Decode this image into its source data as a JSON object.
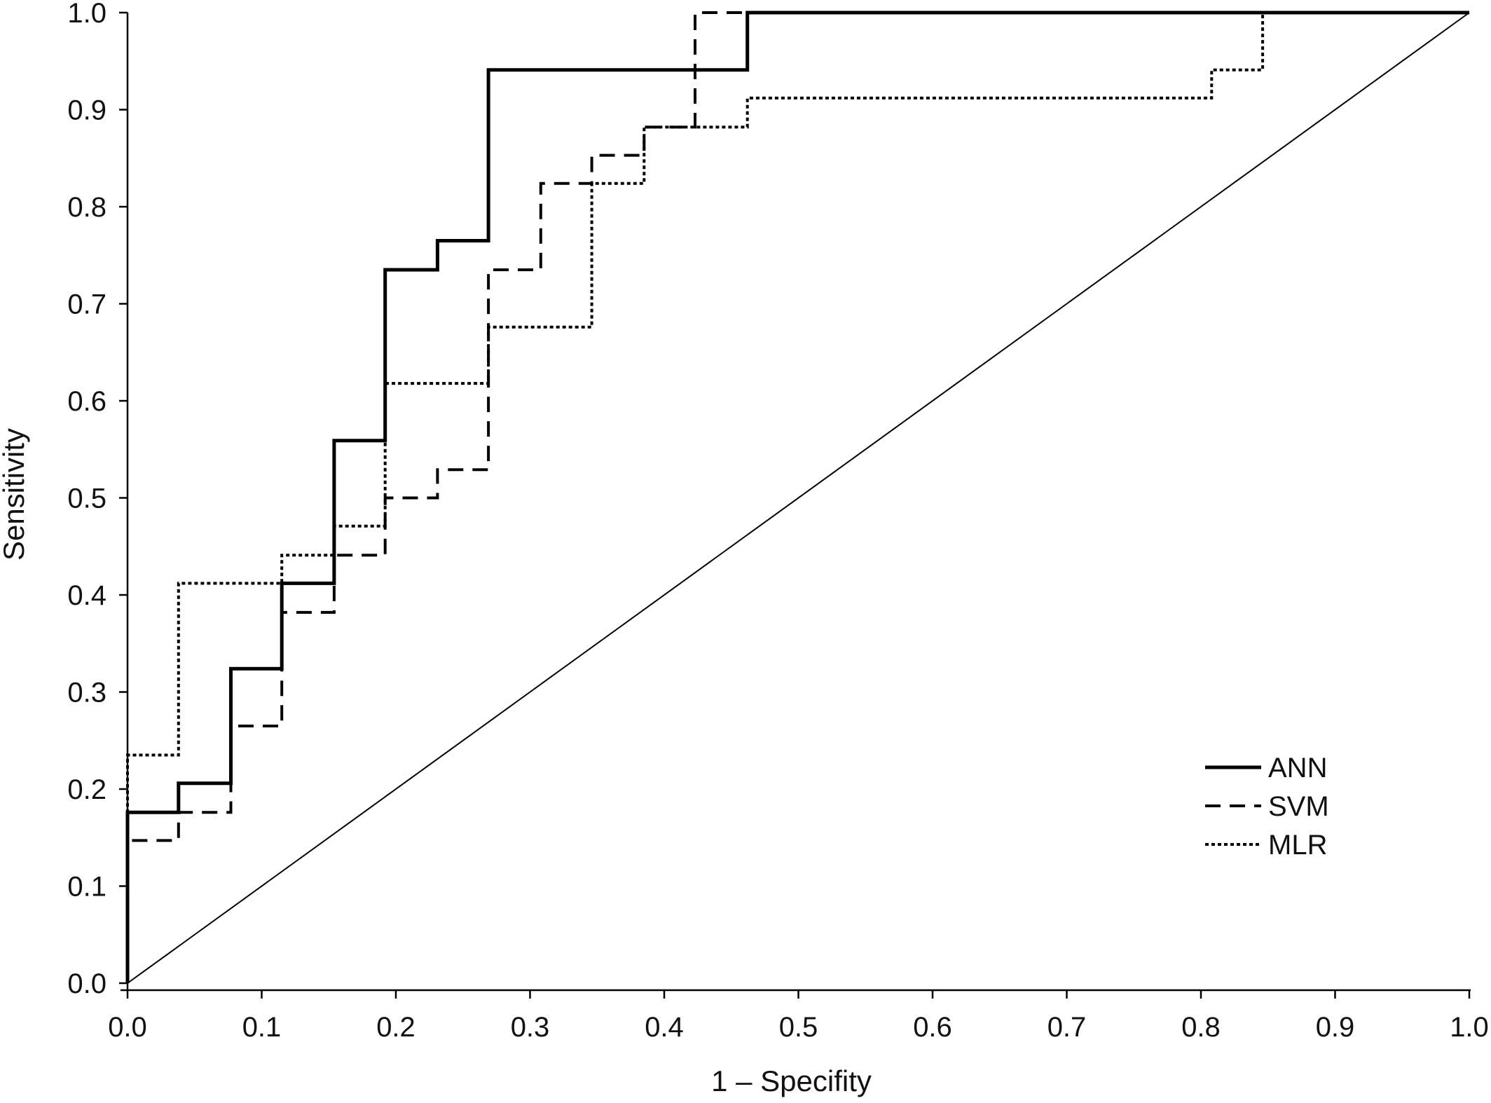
{
  "chart_data": {
    "type": "line",
    "title": "",
    "xlabel": "1 – Specifity",
    "ylabel": "Sensitivity",
    "xlim": [
      0.0,
      1.0
    ],
    "ylim": [
      0.0,
      1.0
    ],
    "grid": false,
    "legend_position": "bottom-right",
    "x_ticks": [
      "0.0",
      "0.1",
      "0.2",
      "0.3",
      "0.4",
      "0.5",
      "0.6",
      "0.7",
      "0.8",
      "0.9",
      "1.0"
    ],
    "y_ticks": [
      "0.0",
      "0.1",
      "0.2",
      "0.3",
      "0.4",
      "0.5",
      "0.6",
      "0.7",
      "0.8",
      "0.9",
      "1.0"
    ],
    "reference_line": {
      "x": [
        0.0,
        1.0
      ],
      "y": [
        0.0,
        1.0
      ]
    },
    "series": [
      {
        "name": "ANN",
        "style": "solid",
        "color": "#000000",
        "points": [
          [
            0.0,
            0.0
          ],
          [
            0.0,
            0.176
          ],
          [
            0.038,
            0.176
          ],
          [
            0.038,
            0.206
          ],
          [
            0.077,
            0.206
          ],
          [
            0.077,
            0.324
          ],
          [
            0.115,
            0.324
          ],
          [
            0.115,
            0.412
          ],
          [
            0.154,
            0.412
          ],
          [
            0.154,
            0.559
          ],
          [
            0.192,
            0.559
          ],
          [
            0.192,
            0.735
          ],
          [
            0.231,
            0.735
          ],
          [
            0.231,
            0.765
          ],
          [
            0.269,
            0.765
          ],
          [
            0.269,
            0.941
          ],
          [
            0.462,
            0.941
          ],
          [
            0.462,
            1.0
          ],
          [
            1.0,
            1.0
          ]
        ]
      },
      {
        "name": "SVM",
        "style": "dashed",
        "color": "#000000",
        "points": [
          [
            0.0,
            0.0
          ],
          [
            0.0,
            0.147
          ],
          [
            0.038,
            0.147
          ],
          [
            0.038,
            0.176
          ],
          [
            0.077,
            0.176
          ],
          [
            0.077,
            0.265
          ],
          [
            0.115,
            0.265
          ],
          [
            0.115,
            0.382
          ],
          [
            0.154,
            0.382
          ],
          [
            0.154,
            0.441
          ],
          [
            0.192,
            0.441
          ],
          [
            0.192,
            0.5
          ],
          [
            0.231,
            0.5
          ],
          [
            0.231,
            0.529
          ],
          [
            0.269,
            0.529
          ],
          [
            0.269,
            0.735
          ],
          [
            0.308,
            0.735
          ],
          [
            0.308,
            0.824
          ],
          [
            0.346,
            0.824
          ],
          [
            0.346,
            0.853
          ],
          [
            0.385,
            0.853
          ],
          [
            0.385,
            0.882
          ],
          [
            0.423,
            0.882
          ],
          [
            0.423,
            1.0
          ],
          [
            1.0,
            1.0
          ]
        ]
      },
      {
        "name": "MLR",
        "style": "dotted",
        "color": "#000000",
        "points": [
          [
            0.0,
            0.0
          ],
          [
            0.0,
            0.235
          ],
          [
            0.038,
            0.235
          ],
          [
            0.038,
            0.412
          ],
          [
            0.115,
            0.412
          ],
          [
            0.115,
            0.441
          ],
          [
            0.154,
            0.441
          ],
          [
            0.154,
            0.471
          ],
          [
            0.192,
            0.471
          ],
          [
            0.192,
            0.618
          ],
          [
            0.269,
            0.618
          ],
          [
            0.269,
            0.676
          ],
          [
            0.346,
            0.676
          ],
          [
            0.346,
            0.824
          ],
          [
            0.385,
            0.824
          ],
          [
            0.385,
            0.882
          ],
          [
            0.462,
            0.882
          ],
          [
            0.462,
            0.912
          ],
          [
            0.808,
            0.912
          ],
          [
            0.808,
            0.941
          ],
          [
            0.846,
            0.941
          ],
          [
            0.846,
            1.0
          ],
          [
            1.0,
            1.0
          ]
        ]
      }
    ]
  }
}
